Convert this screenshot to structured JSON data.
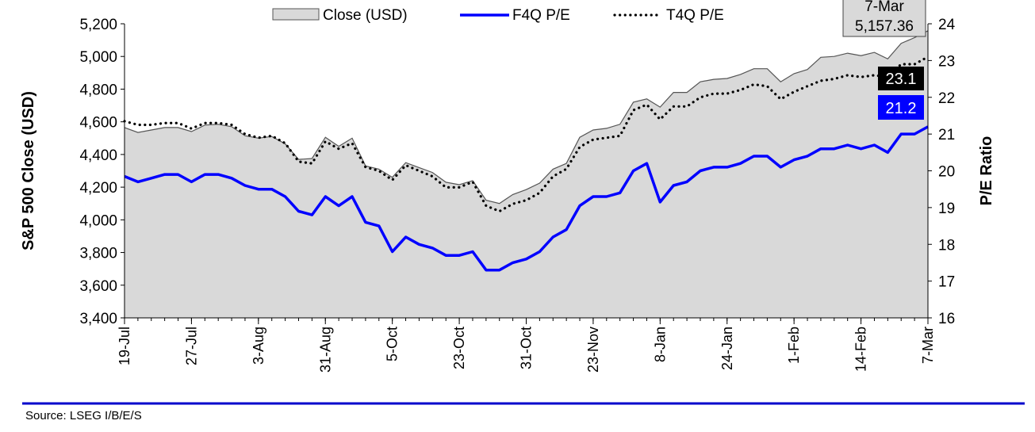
{
  "chart_data": {
    "type": "line",
    "xlabel": "",
    "ylabel": "S&P 500 Close (USD)",
    "y2label": "P/E Ratio",
    "ylim": [
      3400,
      5200
    ],
    "y2lim": [
      16,
      24
    ],
    "yticks": [
      "3,400",
      "3,600",
      "3,800",
      "4,000",
      "4,200",
      "4,400",
      "4,600",
      "4,800",
      "5,000",
      "5,200"
    ],
    "y2ticks": [
      "16",
      "17",
      "18",
      "19",
      "20",
      "21",
      "22",
      "23",
      "24"
    ],
    "x_tick_labels": [
      "19-Jul",
      "27-Jul",
      "3-Aug",
      "31-Aug",
      "5-Oct",
      "23-Oct",
      "31-Oct",
      "23-Nov",
      "8-Jan",
      "24-Jan",
      "1-Feb",
      "14-Feb",
      "7-Mar"
    ],
    "legend_position": "top",
    "grid": false,
    "series": [
      {
        "name": "Close (USD)",
        "kind": "area",
        "axis": "left",
        "color": "#d9d9d9",
        "values": [
          4565,
          4535,
          4550,
          4565,
          4565,
          4540,
          4580,
          4585,
          4570,
          4515,
          4500,
          4510,
          4465,
          4370,
          4375,
          4505,
          4450,
          4500,
          4330,
          4310,
          4260,
          4350,
          4320,
          4290,
          4230,
          4215,
          4240,
          4120,
          4100,
          4155,
          4185,
          4225,
          4310,
          4345,
          4505,
          4550,
          4560,
          4585,
          4720,
          4740,
          4690,
          4780,
          4780,
          4845,
          4860,
          4865,
          4890,
          4925,
          4925,
          4845,
          4895,
          4920,
          4995,
          5000,
          5020,
          5005,
          5025,
          4985,
          5080,
          5115,
          5157.36
        ]
      },
      {
        "name": "F4Q P/E",
        "kind": "line",
        "axis": "right",
        "color": "#0000ff",
        "values": [
          19.85,
          19.7,
          19.8,
          19.9,
          19.9,
          19.7,
          19.9,
          19.9,
          19.8,
          19.6,
          19.5,
          19.5,
          19.3,
          18.9,
          18.8,
          19.3,
          19.05,
          19.3,
          18.6,
          18.5,
          17.8,
          18.2,
          18.0,
          17.9,
          17.7,
          17.7,
          17.8,
          17.3,
          17.3,
          17.5,
          17.6,
          17.8,
          18.2,
          18.4,
          19.05,
          19.3,
          19.3,
          19.4,
          20.0,
          20.2,
          19.15,
          19.6,
          19.7,
          20.0,
          20.1,
          20.1,
          20.2,
          20.4,
          20.4,
          20.1,
          20.3,
          20.4,
          20.6,
          20.6,
          20.7,
          20.6,
          20.7,
          20.5,
          21.0,
          21.0,
          21.2
        ]
      },
      {
        "name": "T4Q P/E",
        "kind": "dotted",
        "axis": "right",
        "color": "#000000",
        "values": [
          21.35,
          21.25,
          21.25,
          21.3,
          21.3,
          21.15,
          21.3,
          21.3,
          21.25,
          21.0,
          20.9,
          20.95,
          20.75,
          20.25,
          20.2,
          20.8,
          20.6,
          20.75,
          20.1,
          20.0,
          19.75,
          20.15,
          20.0,
          19.85,
          19.55,
          19.55,
          19.7,
          19.05,
          18.9,
          19.1,
          19.2,
          19.4,
          19.85,
          20.05,
          20.65,
          20.85,
          20.9,
          20.95,
          21.65,
          21.8,
          21.4,
          21.75,
          21.75,
          22.0,
          22.1,
          22.1,
          22.2,
          22.35,
          22.3,
          21.95,
          22.15,
          22.3,
          22.45,
          22.5,
          22.6,
          22.55,
          22.6,
          22.55,
          22.9,
          22.9,
          23.1
        ]
      }
    ],
    "annotations": {
      "close_box": {
        "date": "7-Mar",
        "value": "5,157.36"
      },
      "t4q_box": {
        "value": "23.1"
      },
      "f4q_box": {
        "value": "21.2"
      }
    },
    "source": "Source: LSEG I/B/E/S",
    "colors": {
      "divider": "#0000cc",
      "t4q_box_bg": "#000000",
      "f4q_box_bg": "#0000ff",
      "close_box_bg": "#d9d9d9"
    }
  }
}
